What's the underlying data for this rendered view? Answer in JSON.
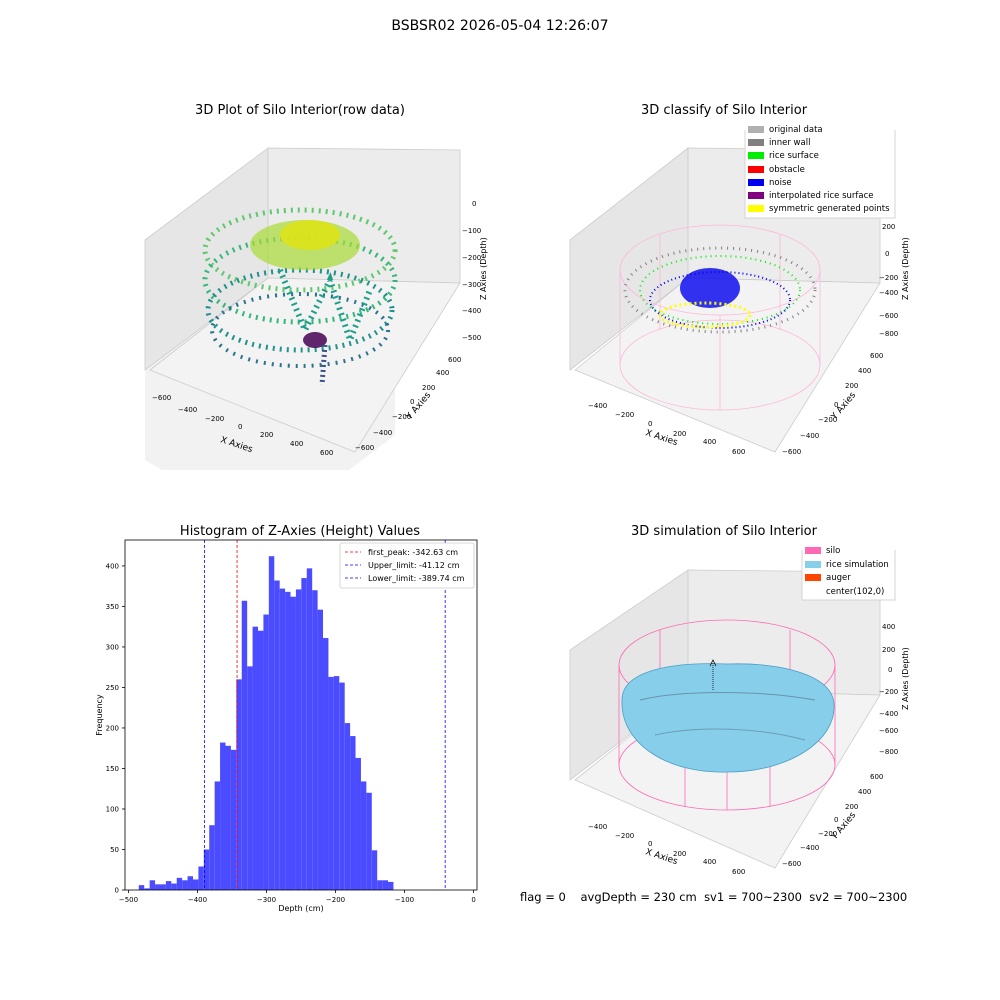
{
  "figure": {
    "suptitle": "BSBSR02 2026-05-04 12:26:07",
    "status_line": {
      "flag": "flag = 0",
      "avg_depth": "avgDepth = 230 cm",
      "sv1": "sv1 = 700~2300",
      "sv2": "sv2 = 700~2300"
    }
  },
  "panels": {
    "raw": {
      "title": "3D Plot of Silo Interior(row data)",
      "xlabel": "X Axies",
      "ylabel": "Y Axies",
      "zlabel": "Z Axies (Depth)",
      "x_ticks": [
        "−600",
        "−400",
        "−200",
        "0",
        "200",
        "400",
        "600"
      ],
      "y_ticks": [
        "−600",
        "−400",
        "−200",
        "0",
        "200",
        "400",
        "600"
      ],
      "z_ticks": [
        "0",
        "−100",
        "−200",
        "−300",
        "−400",
        "−500"
      ]
    },
    "classify": {
      "title": "3D classify of Silo Interior",
      "xlabel": "X Axies",
      "ylabel": "Y Axies",
      "zlabel": "Z Axies (Depth)",
      "x_ticks": [
        "−400",
        "−200",
        "0",
        "200",
        "400",
        "600"
      ],
      "y_ticks": [
        "−600",
        "−400",
        "−200",
        "0",
        "200",
        "400",
        "600"
      ],
      "z_ticks": [
        "200",
        "0",
        "−200",
        "−400",
        "−600",
        "−800"
      ],
      "legend": [
        {
          "label": "original data",
          "color": "#b0b0b0"
        },
        {
          "label": "inner wall",
          "color": "#808080"
        },
        {
          "label": "rice surface",
          "color": "#00ee00"
        },
        {
          "label": "obstacle",
          "color": "#ff0000"
        },
        {
          "label": "noise",
          "color": "#0000ee"
        },
        {
          "label": "interpolated rice surface",
          "color": "#800080"
        },
        {
          "label": "symmetric generated points",
          "color": "#ffff00"
        }
      ]
    },
    "simulation": {
      "title": "3D simulation of Silo Interior",
      "xlabel": "X Axies",
      "ylabel": "Y Axies",
      "zlabel": "Z Axies (Depth)",
      "x_ticks": [
        "−400",
        "−200",
        "0",
        "200",
        "400",
        "600"
      ],
      "y_ticks": [
        "−600",
        "−400",
        "−200",
        "0",
        "200",
        "400",
        "600"
      ],
      "z_ticks": [
        "400",
        "200",
        "0",
        "−200",
        "−400",
        "−600",
        "−800"
      ],
      "legend": [
        {
          "label": "silo",
          "color": "#ff69b4"
        },
        {
          "label": "rice simulation",
          "color": "#87ceeb"
        },
        {
          "label": "auger",
          "color": "#ff4500"
        },
        {
          "label": "center(102,0)",
          "color": "#ffffff"
        }
      ]
    }
  },
  "chart_data": {
    "type": "bar",
    "title": "Histogram of Z-Axies (Height) Values",
    "xlabel": "Depth (cm)",
    "ylabel": "Frequency",
    "xlim": [
      -505,
      5
    ],
    "ylim": [
      0,
      432
    ],
    "x_ticks": [
      -500,
      -400,
      -300,
      -200,
      -100,
      0
    ],
    "y_ticks": [
      0,
      50,
      100,
      150,
      200,
      250,
      300,
      350,
      400
    ],
    "bin_start": -485,
    "bin_width": 7.85,
    "values": [
      6,
      2,
      12,
      7,
      7,
      11,
      8,
      15,
      12,
      17,
      13,
      29,
      50,
      80,
      134,
      182,
      178,
      173,
      260,
      357,
      276,
      325,
      320,
      340,
      412,
      382,
      372,
      368,
      362,
      371,
      385,
      397,
      370,
      346,
      311,
      263,
      264,
      256,
      206,
      190,
      163,
      134,
      120,
      49,
      12,
      12,
      10,
      0
    ],
    "lines": [
      {
        "label": "first_peak: -342.63 cm",
        "value": -342.63,
        "color": "#ff0000"
      },
      {
        "label": "Upper_limit: -41.12 cm",
        "value": -41.12,
        "color": "#0000ff"
      },
      {
        "label": "Lower_limit: -389.74 cm",
        "value": -389.74,
        "color": "#0000ff"
      }
    ],
    "bar_color": "#4b4bff",
    "legend_position": "upper right"
  }
}
